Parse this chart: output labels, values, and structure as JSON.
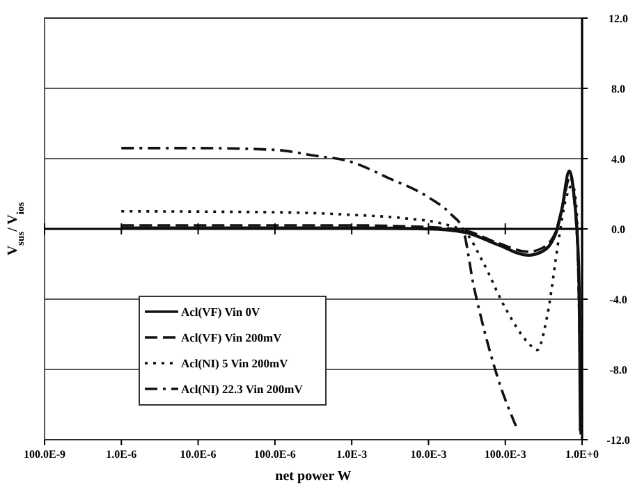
{
  "chart_data": {
    "type": "line",
    "xlabel": "net power W",
    "ylabel": "V$_{sus}$/ V$_{ios}$",
    "log": "x",
    "xlim": [
      1e-07,
      1
    ],
    "ylim": [
      -12,
      12
    ],
    "xticks": [
      {
        "value": 1e-07,
        "label": "100.0E-9"
      },
      {
        "value": 1e-06,
        "label": "1.0E-6"
      },
      {
        "value": 1e-05,
        "label": "10.0E-6"
      },
      {
        "value": 0.0001,
        "label": "100.0E-6"
      },
      {
        "value": 0.001,
        "label": "1.0E-3"
      },
      {
        "value": 0.01,
        "label": "10.0E-3"
      },
      {
        "value": 0.1,
        "label": "100.0E-3"
      },
      {
        "value": 1,
        "label": "1.0E+0"
      }
    ],
    "yticks": [
      {
        "value": 12,
        "label": "12.0"
      },
      {
        "value": 8,
        "label": "8.0"
      },
      {
        "value": 4,
        "label": "4.0"
      },
      {
        "value": 0,
        "label": "0.0"
      },
      {
        "value": -4,
        "label": "-4.0"
      },
      {
        "value": -8,
        "label": "-8.0"
      },
      {
        "value": -12,
        "label": "-12.0"
      }
    ],
    "grid": "y",
    "legend": "bottom left",
    "series": [
      {
        "name": "Acl(VF) Vin 0V",
        "color": "#111111",
        "line_style": "solid",
        "x": [
          1e-06,
          0.001,
          0.01,
          0.03,
          0.08,
          0.2,
          0.3,
          0.45,
          0.55,
          0.68,
          0.78,
          0.9,
          0.93,
          0.95
        ],
        "values": [
          0.05,
          0.05,
          0,
          -0.2,
          -0.9,
          -1.5,
          -1.3,
          -0.3,
          1.2,
          3.3,
          2.0,
          -2,
          -6,
          -11.5
        ]
      },
      {
        "name": "Acl(VF) Vin 200mV",
        "color": "#111111",
        "line_style": "dashed",
        "x": [
          1e-06,
          0.0001,
          0.001,
          0.01,
          0.03,
          0.08,
          0.2,
          0.3,
          0.45,
          0.55,
          0.7,
          0.8,
          0.9,
          0.94,
          0.96
        ],
        "values": [
          0.2,
          0.2,
          0.2,
          0.1,
          -0.1,
          -0.8,
          -1.3,
          -1.1,
          -0.2,
          1.2,
          3.0,
          1.5,
          -3,
          -8,
          -11.7
        ]
      },
      {
        "name": "Acl(NI) 5 Vin 200mV",
        "color": "#111111",
        "line_style": "dotted",
        "x": [
          1e-06,
          0.0001,
          0.001,
          0.005,
          0.015,
          0.03,
          0.05,
          0.1,
          0.2,
          0.26,
          0.35,
          0.5,
          0.6,
          0.75,
          0.85,
          0.9,
          0.95,
          0.98
        ],
        "values": [
          1.0,
          0.95,
          0.8,
          0.6,
          0.3,
          -0.2,
          -1.8,
          -4.5,
          -6.5,
          -6.9,
          -5,
          -0.5,
          1.5,
          2.5,
          1.0,
          -3,
          -8,
          -11.5
        ]
      },
      {
        "name": "Acl(NI) 22.3 Vin 200mV",
        "color": "#111111",
        "line_style": "dashdot",
        "x": [
          1e-06,
          1e-05,
          0.0001,
          0.0003,
          0.001,
          0.003,
          0.01,
          0.02,
          0.028,
          0.039,
          0.05,
          0.08,
          0.14
        ],
        "values": [
          4.6,
          4.6,
          4.5,
          4.2,
          3.8,
          2.9,
          1.8,
          0.8,
          0,
          -3.3,
          -5.3,
          -8.5,
          -11.3
        ]
      }
    ]
  }
}
